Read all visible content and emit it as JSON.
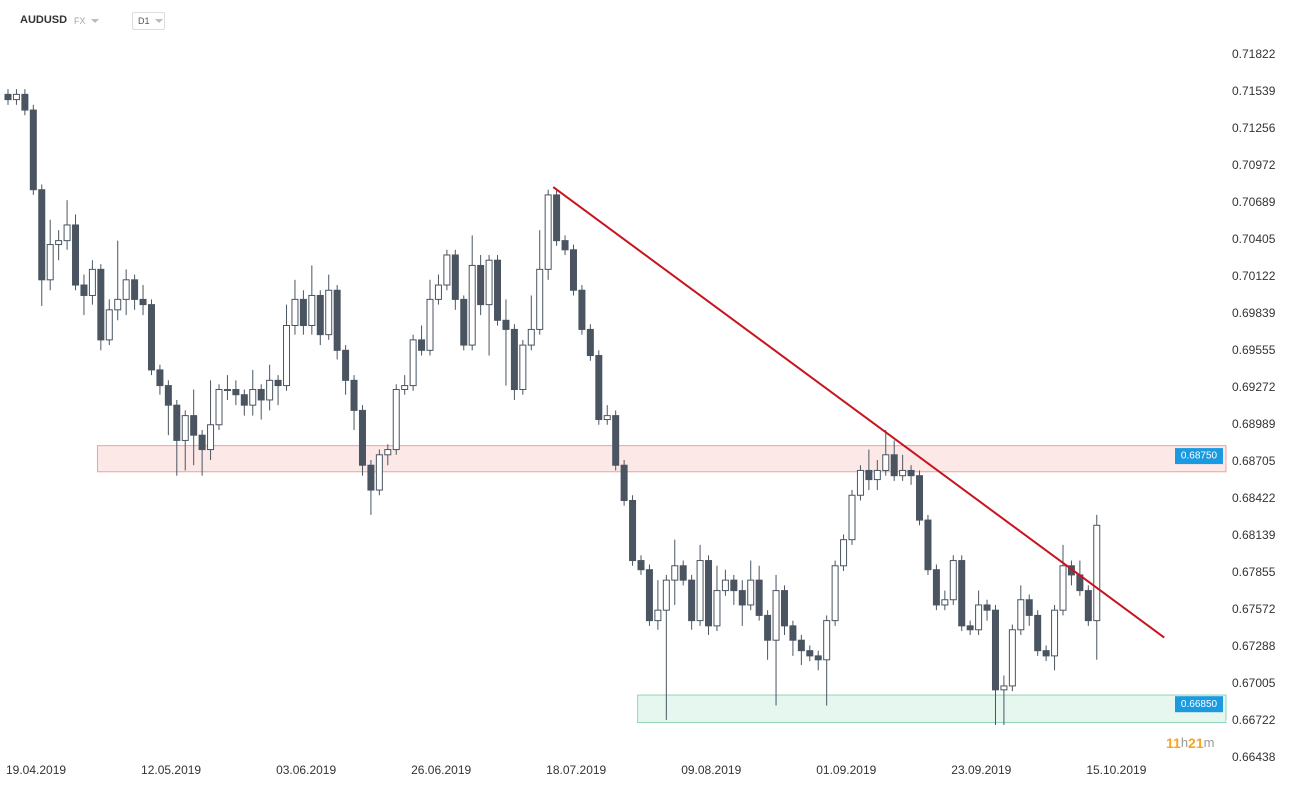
{
  "chart_data": {
    "type": "candlestick",
    "symbol": "AUDUSD",
    "market": "FX",
    "timeframe": "D1",
    "countdown": [
      "11",
      "h",
      "21",
      "m"
    ],
    "categories": [
      "19.04.2019",
      null,
      null,
      null,
      null,
      null,
      null,
      null,
      null,
      null,
      null,
      null,
      null,
      null,
      null,
      null,
      "12.05.2019",
      null,
      null,
      null,
      null,
      null,
      null,
      null,
      null,
      null,
      null,
      null,
      null,
      null,
      null,
      null,
      "03.06.2019",
      null,
      null,
      null,
      null,
      null,
      null,
      null,
      null,
      null,
      null,
      null,
      null,
      null,
      null,
      null,
      "26.06.2019",
      null,
      null,
      null,
      null,
      null,
      null,
      null,
      null,
      null,
      null,
      null,
      null,
      null,
      null,
      null,
      "18.07.2019",
      null,
      null,
      null,
      null,
      null,
      null,
      null,
      null,
      null,
      null,
      null,
      null,
      null,
      null,
      null,
      "09.08.2019",
      null,
      null,
      null,
      null,
      null,
      null,
      null,
      null,
      null,
      null,
      null,
      null,
      null,
      null,
      null,
      "01.09.2019",
      null,
      null,
      null,
      null,
      null,
      null,
      null,
      null,
      null,
      null,
      null,
      null,
      null,
      null,
      null,
      "23.09.2019",
      null,
      null,
      null,
      null,
      null,
      null,
      null,
      null,
      null,
      null,
      null,
      null,
      null,
      null,
      null,
      "15.10.2019",
      null
    ],
    "open": [
      0.7152,
      0.7148,
      0.7152,
      0.714,
      0.7079,
      0.701,
      0.7037,
      0.704,
      0.7052,
      0.7006,
      0.6998,
      0.7018,
      0.6964,
      0.6987,
      0.6995,
      0.701,
      0.6995,
      0.6991,
      0.6941,
      0.6929,
      0.6914,
      0.6887,
      0.6906,
      0.6891,
      0.688,
      0.6899,
      0.6926,
      0.6926,
      0.6922,
      0.6914,
      0.6926,
      0.6918,
      0.6933,
      0.6929,
      0.6975,
      0.6995,
      0.6975,
      0.6998,
      0.6968,
      0.7002,
      0.6956,
      0.6933,
      0.691,
      0.6868,
      0.6849,
      0.6876,
      0.688,
      0.6926,
      0.6929,
      0.6964,
      0.6956,
      0.6995,
      0.7006,
      0.7029,
      0.6995,
      0.696,
      0.7021,
      0.6991,
      0.7025,
      0.6979,
      0.6972,
      0.6926,
      0.696,
      0.6972,
      0.7018,
      0.7075,
      0.704,
      0.7033,
      0.7002,
      0.6972,
      0.6952,
      0.6903,
      0.6906,
      0.6868,
      0.6841,
      0.6795,
      0.6788,
      0.6749,
      0.6757,
      0.678,
      0.6791,
      0.678,
      0.6749,
      0.6795,
      0.6745,
      0.6772,
      0.678,
      0.6772,
      0.6761,
      0.678,
      0.6753,
      0.6734,
      0.6772,
      0.6745,
      0.6734,
      0.6726,
      0.6722,
      0.6719,
      0.6749,
      0.6791,
      0.6811,
      0.6845,
      0.6864,
      0.6857,
      0.6864,
      0.6876,
      0.686,
      0.6864,
      0.686,
      0.6826,
      0.6788,
      0.6761,
      0.6765,
      0.6795,
      0.6745,
      0.6742,
      0.6761,
      0.6757,
      0.6696,
      0.6699,
      0.6742,
      0.6765,
      0.6753,
      0.6726,
      0.6722,
      0.6757,
      0.6791,
      0.6784,
      0.6772,
      0.6749
    ],
    "high": [
      0.7156,
      0.7156,
      0.7156,
      0.7144,
      0.7083,
      0.7056,
      0.7048,
      0.7071,
      0.706,
      0.7014,
      0.7025,
      0.7022,
      0.6995,
      0.704,
      0.7018,
      0.7014,
      0.7006,
      0.6995,
      0.6945,
      0.6933,
      0.6918,
      0.691,
      0.6926,
      0.6895,
      0.6933,
      0.693,
      0.6937,
      0.6933,
      0.6926,
      0.6941,
      0.693,
      0.6945,
      0.6937,
      0.6991,
      0.701,
      0.7002,
      0.7021,
      0.7002,
      0.7014,
      0.7006,
      0.696,
      0.6937,
      0.6914,
      0.6872,
      0.688,
      0.6884,
      0.693,
      0.6937,
      0.6968,
      0.6975,
      0.701,
      0.7014,
      0.7033,
      0.7033,
      0.6998,
      0.7044,
      0.7029,
      0.7029,
      0.7029,
      0.6995,
      0.6976,
      0.6964,
      0.6998,
      0.7048,
      0.7079,
      0.7079,
      0.7044,
      0.7037,
      0.7006,
      0.6976,
      0.6956,
      0.6914,
      0.691,
      0.6872,
      0.6845,
      0.6799,
      0.6792,
      0.678,
      0.6784,
      0.6811,
      0.6795,
      0.6784,
      0.6807,
      0.6799,
      0.6791,
      0.6788,
      0.6784,
      0.678,
      0.6795,
      0.6791,
      0.6757,
      0.6784,
      0.6776,
      0.6749,
      0.6738,
      0.673,
      0.6726,
      0.6753,
      0.6795,
      0.6815,
      0.6849,
      0.6868,
      0.688,
      0.6872,
      0.6895,
      0.6887,
      0.6876,
      0.6868,
      0.6864,
      0.683,
      0.6792,
      0.6772,
      0.6799,
      0.6799,
      0.6749,
      0.6772,
      0.6765,
      0.6761,
      0.6707,
      0.6746,
      0.6776,
      0.6769,
      0.6757,
      0.673,
      0.6761,
      0.6807,
      0.6795,
      0.6795,
      0.6776,
      0.683
    ],
    "low": [
      0.7144,
      0.7144,
      0.7136,
      0.7075,
      0.699,
      0.7002,
      0.7025,
      0.7033,
      0.7002,
      0.6983,
      0.6991,
      0.6956,
      0.696,
      0.6979,
      0.6983,
      0.6987,
      0.6983,
      0.6937,
      0.6922,
      0.6891,
      0.686,
      0.6864,
      0.6868,
      0.686,
      0.6872,
      0.6895,
      0.6918,
      0.6914,
      0.6906,
      0.6906,
      0.6903,
      0.691,
      0.6914,
      0.6925,
      0.6968,
      0.6968,
      0.6968,
      0.696,
      0.6964,
      0.6949,
      0.6922,
      0.6895,
      0.686,
      0.683,
      0.6845,
      0.6868,
      0.6876,
      0.6922,
      0.6925,
      0.6952,
      0.6952,
      0.6991,
      0.7002,
      0.6987,
      0.6956,
      0.6956,
      0.6983,
      0.6952,
      0.6975,
      0.6929,
      0.6918,
      0.6922,
      0.6956,
      0.6968,
      0.701,
      0.7036,
      0.7029,
      0.6998,
      0.6968,
      0.6948,
      0.6899,
      0.6899,
      0.6864,
      0.6837,
      0.6791,
      0.6784,
      0.6745,
      0.6742,
      0.6673,
      0.6761,
      0.6776,
      0.6742,
      0.6745,
      0.6738,
      0.6741,
      0.6768,
      0.6761,
      0.6745,
      0.6757,
      0.6749,
      0.6719,
      0.6684,
      0.6738,
      0.6722,
      0.6715,
      0.6718,
      0.6711,
      0.6684,
      0.6745,
      0.6787,
      0.6807,
      0.6841,
      0.6849,
      0.6849,
      0.686,
      0.6856,
      0.6856,
      0.6853,
      0.6822,
      0.6784,
      0.6757,
      0.6757,
      0.6761,
      0.6741,
      0.6738,
      0.6738,
      0.6749,
      0.6669,
      0.6669,
      0.6695,
      0.6738,
      0.6745,
      0.6722,
      0.6718,
      0.6711,
      0.6753,
      0.6776,
      0.6768,
      0.6745,
      0.6719
    ],
    "close": [
      0.7148,
      0.7152,
      0.714,
      0.7079,
      0.701,
      0.7037,
      0.704,
      0.7052,
      0.7006,
      0.6998,
      0.7018,
      0.6964,
      0.6987,
      0.6995,
      0.701,
      0.6995,
      0.6991,
      0.6941,
      0.6929,
      0.6914,
      0.6887,
      0.6906,
      0.6891,
      0.688,
      0.6899,
      0.6926,
      0.6926,
      0.6922,
      0.6914,
      0.6926,
      0.6918,
      0.6933,
      0.6929,
      0.6975,
      0.6995,
      0.6975,
      0.6998,
      0.6968,
      0.7002,
      0.6956,
      0.6933,
      0.691,
      0.6868,
      0.6849,
      0.6876,
      0.688,
      0.6926,
      0.6929,
      0.6964,
      0.6956,
      0.6995,
      0.7006,
      0.7029,
      0.6995,
      0.696,
      0.7021,
      0.6991,
      0.7025,
      0.6979,
      0.6972,
      0.6926,
      0.696,
      0.6972,
      0.7018,
      0.7075,
      0.704,
      0.7033,
      0.7002,
      0.6972,
      0.6952,
      0.6903,
      0.6906,
      0.6868,
      0.6841,
      0.6795,
      0.6788,
      0.6749,
      0.6757,
      0.678,
      0.6791,
      0.678,
      0.6749,
      0.6795,
      0.6745,
      0.6772,
      0.678,
      0.6772,
      0.6761,
      0.678,
      0.6753,
      0.6734,
      0.6772,
      0.6745,
      0.6734,
      0.6726,
      0.6722,
      0.6719,
      0.6749,
      0.6791,
      0.6811,
      0.6845,
      0.6864,
      0.6857,
      0.6864,
      0.6876,
      0.686,
      0.6864,
      0.686,
      0.6826,
      0.6788,
      0.6761,
      0.6765,
      0.6795,
      0.6745,
      0.6742,
      0.6761,
      0.6757,
      0.6696,
      0.6699,
      0.6742,
      0.6765,
      0.6753,
      0.6726,
      0.6722,
      0.6757,
      0.6791,
      0.6784,
      0.6772,
      0.6749,
      0.6822
    ],
    "up_color": "#ffffff",
    "down_color": "#4a5561",
    "ylim": [
      0.66438,
      0.72013
    ],
    "yticks": [
      0.71822,
      0.71539,
      0.71256,
      0.70972,
      0.70689,
      0.70405,
      0.70122,
      0.69839,
      0.69555,
      0.69272,
      0.68989,
      0.68705,
      0.68422,
      0.68139,
      0.67855,
      0.67572,
      0.67288,
      0.67005,
      0.66722,
      0.66438
    ],
    "trendline": {
      "x": [
        64.6,
        137
      ],
      "y": [
        0.7081,
        0.6736
      ],
      "color": "#c8141e"
    },
    "zones": [
      {
        "range": [
          0.6863,
          0.6883
        ],
        "start": 10.6,
        "fill": "#fde8e8",
        "stroke": "#f0a0a0",
        "label": {
          "value": 0.6875,
          "label": "0.68750"
        }
      },
      {
        "range": [
          0.6671,
          0.6692
        ],
        "start": 74.6,
        "fill": "#e6f7f0",
        "stroke": "#8fd6b6",
        "label": {
          "value": 0.6685,
          "label": "0.66850"
        }
      }
    ],
    "tag_color": "#1a9ae0"
  }
}
